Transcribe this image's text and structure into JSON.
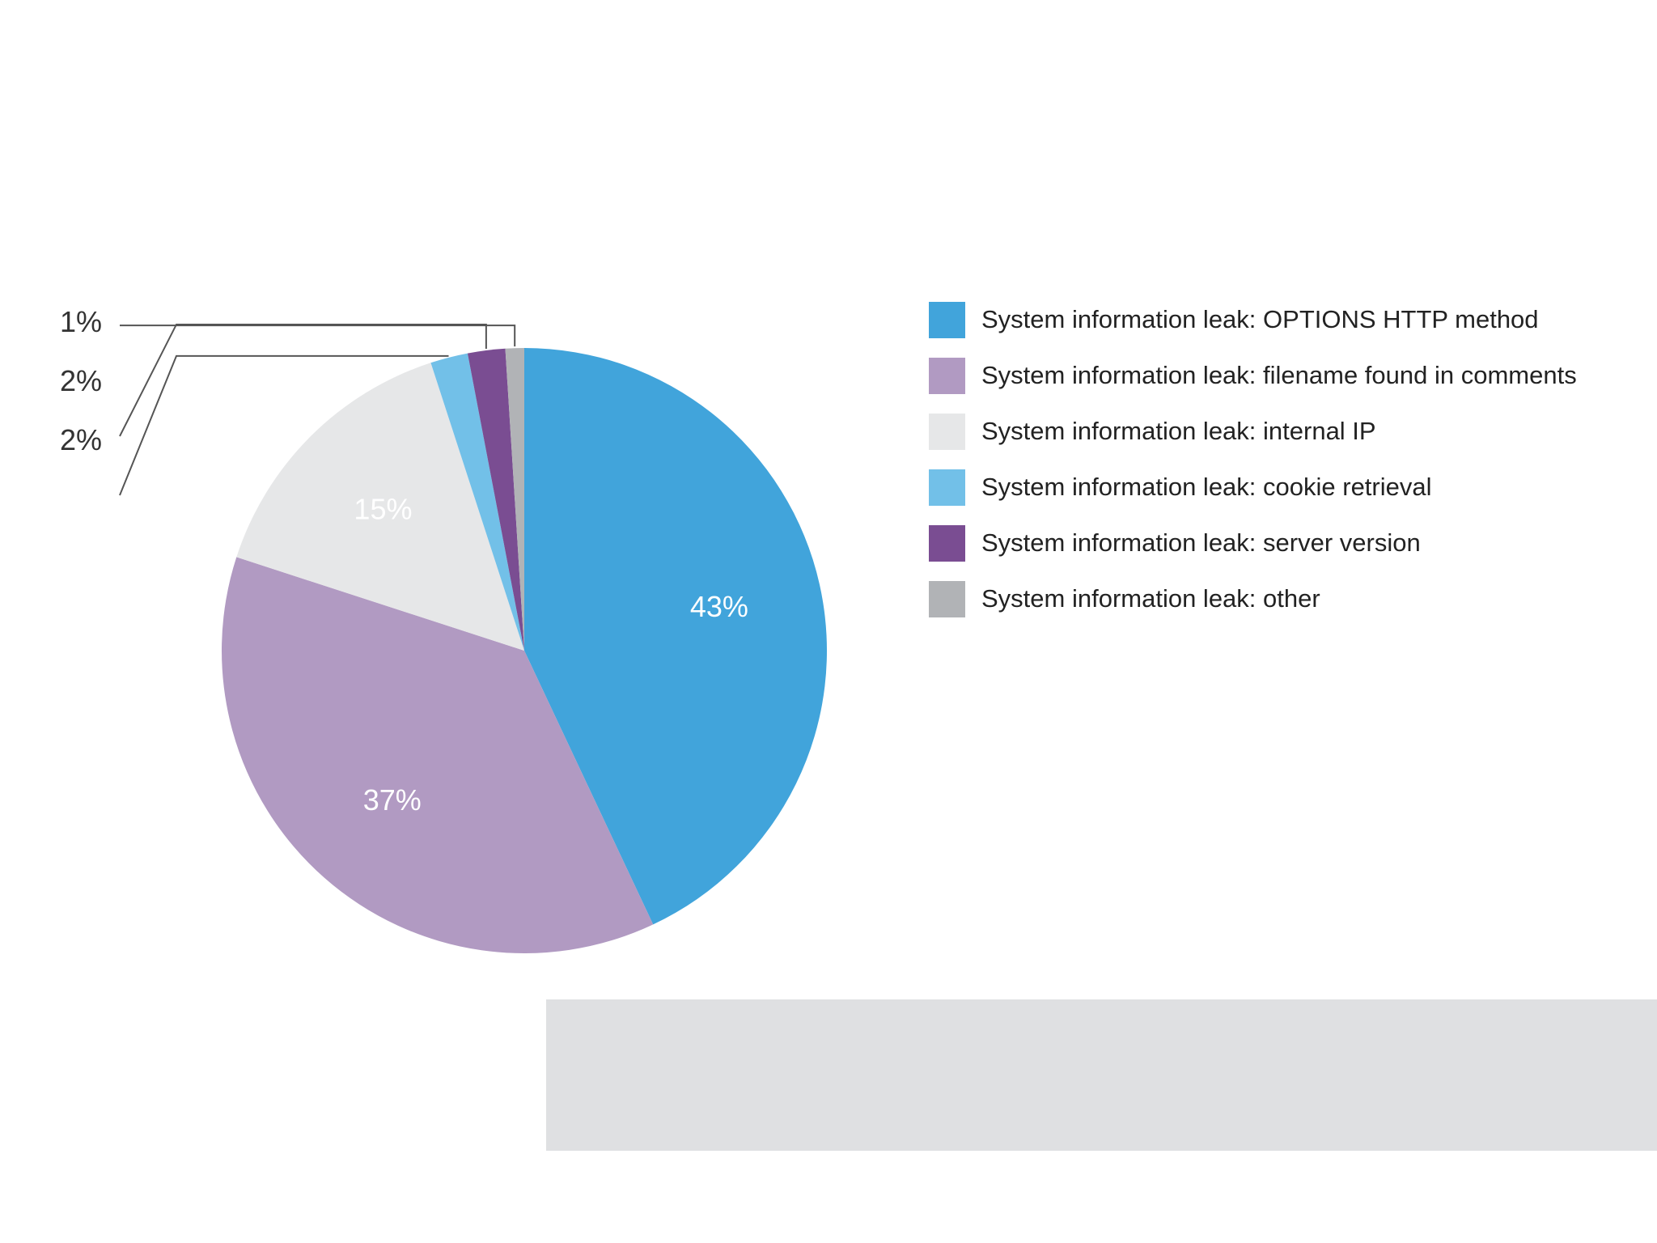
{
  "chart_data": {
    "type": "pie",
    "title": "",
    "slices": [
      {
        "label": "System information leak: OPTIONS HTTP method",
        "value": 43,
        "value_label": "43%",
        "color": "#41a4db"
      },
      {
        "label": "System information leak: filename found in comments",
        "value": 37,
        "value_label": "37%",
        "color": "#b19ac2"
      },
      {
        "label": "System information leak: internal IP",
        "value": 15,
        "value_label": "15%",
        "color": "#e6e7e8"
      },
      {
        "label": "System information leak: cookie retrieval",
        "value": 2,
        "value_label": "2%",
        "color": "#72c0e8"
      },
      {
        "label": "System information leak: server version",
        "value": 2,
        "value_label": "2%",
        "color": "#7a4d92"
      },
      {
        "label": "System information leak: other",
        "value": 1,
        "value_label": "1%",
        "color": "#b1b3b6"
      }
    ],
    "legend_position": "right",
    "start_angle": "12 o'clock",
    "direction": "clockwise"
  }
}
